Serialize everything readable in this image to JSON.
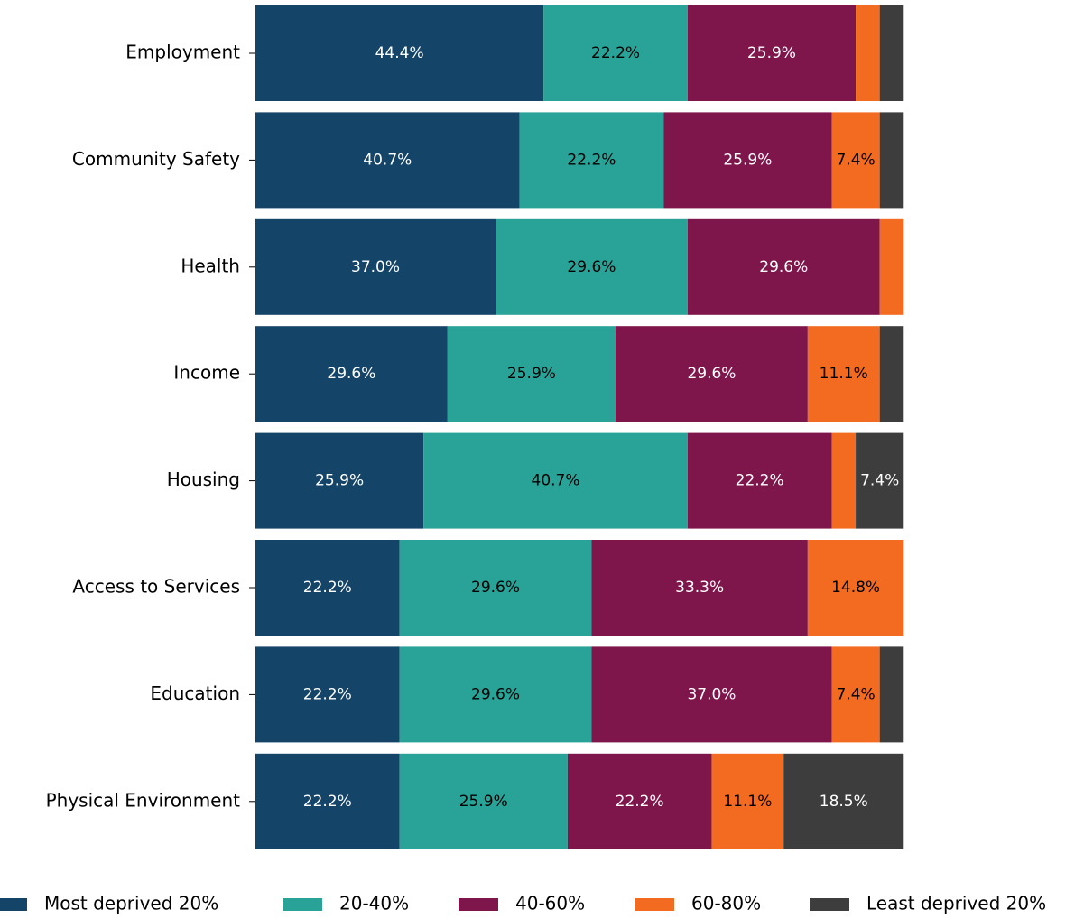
{
  "chart_data": {
    "type": "stacked_barh",
    "categories": [
      "Employment",
      "Community Safety",
      "Health",
      "Income",
      "Housing",
      "Access to Services",
      "Education",
      "Physical Environment"
    ],
    "series": [
      {
        "name": "Most deprived 20%",
        "color": "#154469",
        "values": [
          44.4,
          40.7,
          37.0,
          29.6,
          25.9,
          22.2,
          22.2,
          22.2
        ],
        "value_labels": [
          "44.4%",
          "40.7%",
          "37.0%",
          "29.6%",
          "25.9%",
          "22.2%",
          "22.2%",
          "22.2%"
        ]
      },
      {
        "name": "20-40%",
        "color": "#29a398",
        "values": [
          22.2,
          22.2,
          29.6,
          25.9,
          40.7,
          29.6,
          29.6,
          25.9
        ],
        "value_labels": [
          "22.2%",
          "22.2%",
          "29.6%",
          "25.9%",
          "40.7%",
          "29.6%",
          "29.6%",
          "25.9%"
        ]
      },
      {
        "name": "40-60%",
        "color": "#7f164b",
        "values": [
          25.9,
          25.9,
          29.6,
          29.6,
          22.2,
          33.3,
          37.0,
          22.2
        ],
        "value_labels": [
          "25.9%",
          "25.9%",
          "29.6%",
          "29.6%",
          "22.2%",
          "33.3%",
          "37.0%",
          "22.2%"
        ]
      },
      {
        "name": "60-80%",
        "color": "#f26b21",
        "values": [
          3.7,
          7.4,
          3.7,
          11.1,
          3.7,
          14.8,
          7.4,
          11.1
        ],
        "value_labels": [
          null,
          "7.4%",
          null,
          "11.1%",
          null,
          "14.8%",
          "7.4%",
          "11.1%"
        ]
      },
      {
        "name": "Least deprived 20%",
        "color": "#3d3d3d",
        "values": [
          3.7,
          3.7,
          0,
          3.7,
          7.4,
          0,
          3.7,
          18.5
        ],
        "value_labels": [
          null,
          null,
          null,
          null,
          "7.4%",
          null,
          null,
          "18.5%"
        ]
      }
    ],
    "xlim": [
      0,
      100
    ]
  }
}
